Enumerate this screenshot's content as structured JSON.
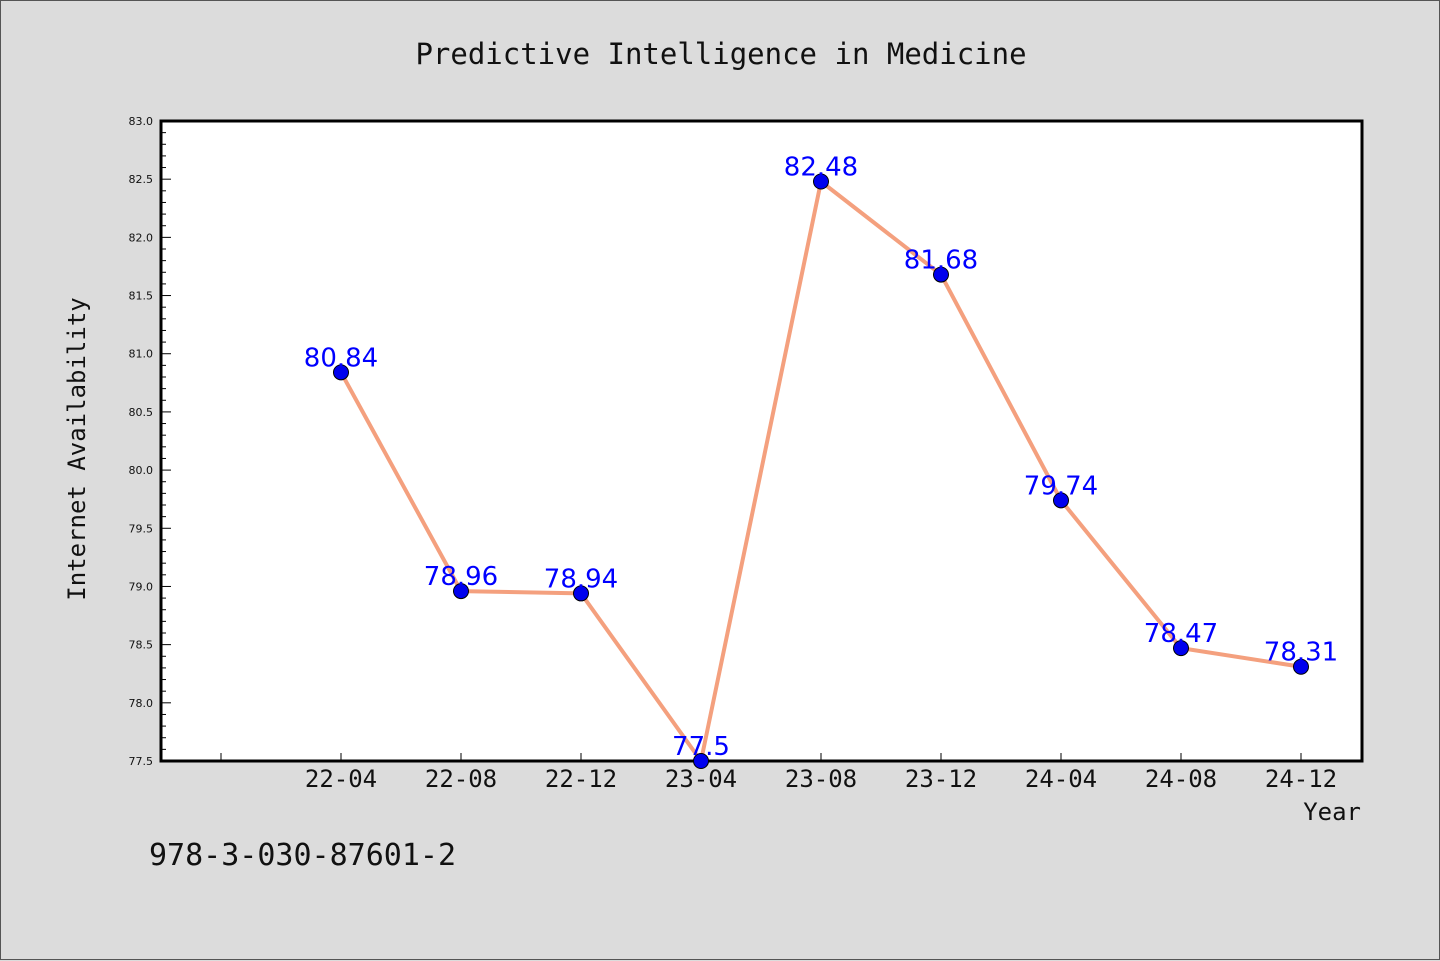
{
  "chart_data": {
    "type": "line",
    "title": "Predictive Intelligence in Medicine",
    "xlabel": "Year",
    "ylabel": "Internet Availability",
    "categories": [
      "22-04",
      "22-08",
      "22-12",
      "23-04",
      "23-08",
      "23-12",
      "24-04",
      "24-08",
      "24-12"
    ],
    "values": [
      80.84,
      78.96,
      78.94,
      77.5,
      82.48,
      81.68,
      79.74,
      78.47,
      78.31
    ],
    "data_labels": [
      "80.84",
      "78.96",
      "78.94",
      "77.5",
      "82.48",
      "81.68",
      "79.74",
      "78.47",
      "78.31"
    ],
    "ylim": [
      77.5,
      83.0
    ],
    "yticks": [
      "77.5",
      "78.0",
      "78.5",
      "79.0",
      "79.5",
      "80.0",
      "80.5",
      "81.0",
      "81.5",
      "82.0",
      "82.5",
      "83.0"
    ],
    "grid": false,
    "legend": "none",
    "colors": {
      "line": "#f4a07e",
      "marker": "#0000ee",
      "label": "#0000ff",
      "background": "#dcdcdc",
      "plot_background": "#ffffff"
    }
  },
  "footer_text": "978-3-030-87601-2"
}
